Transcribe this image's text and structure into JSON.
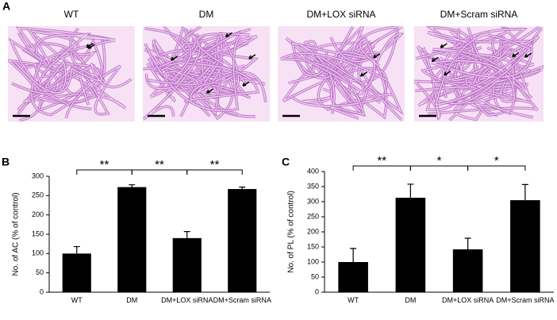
{
  "panel_a": {
    "label": "A",
    "captions": [
      "WT",
      "DM",
      "DM+LOX siRNA",
      "DM+Scram siRNA"
    ]
  },
  "chart_data": [
    {
      "type": "bar",
      "panel_label": "B",
      "y_label": "No. of AC (% of control)",
      "categories": [
        "WT",
        "DM",
        "DM+LOX siRNA",
        "DM+Scram siRNA"
      ],
      "values": [
        100,
        272,
        140,
        267
      ],
      "errors": [
        18,
        6,
        17,
        5
      ],
      "color": "#000000",
      "ylim": [
        0,
        300
      ],
      "yticks": [
        0,
        50,
        100,
        150,
        200,
        250,
        300
      ],
      "brackets": [
        "**",
        "**",
        "**"
      ]
    },
    {
      "type": "bar",
      "panel_label": "C",
      "y_label": "No. of PL (% of control)",
      "categories": [
        "WT",
        "DM",
        "DM+LOX siRNA",
        "DM+Scram siRNA"
      ],
      "values": [
        100,
        313,
        142,
        305
      ],
      "errors": [
        45,
        45,
        37,
        52
      ],
      "color": "#000000",
      "ylim": [
        0,
        400
      ],
      "yticks": [
        0,
        50,
        100,
        150,
        200,
        250,
        300,
        350,
        400
      ],
      "brackets": [
        "**",
        "*",
        "*"
      ]
    }
  ]
}
